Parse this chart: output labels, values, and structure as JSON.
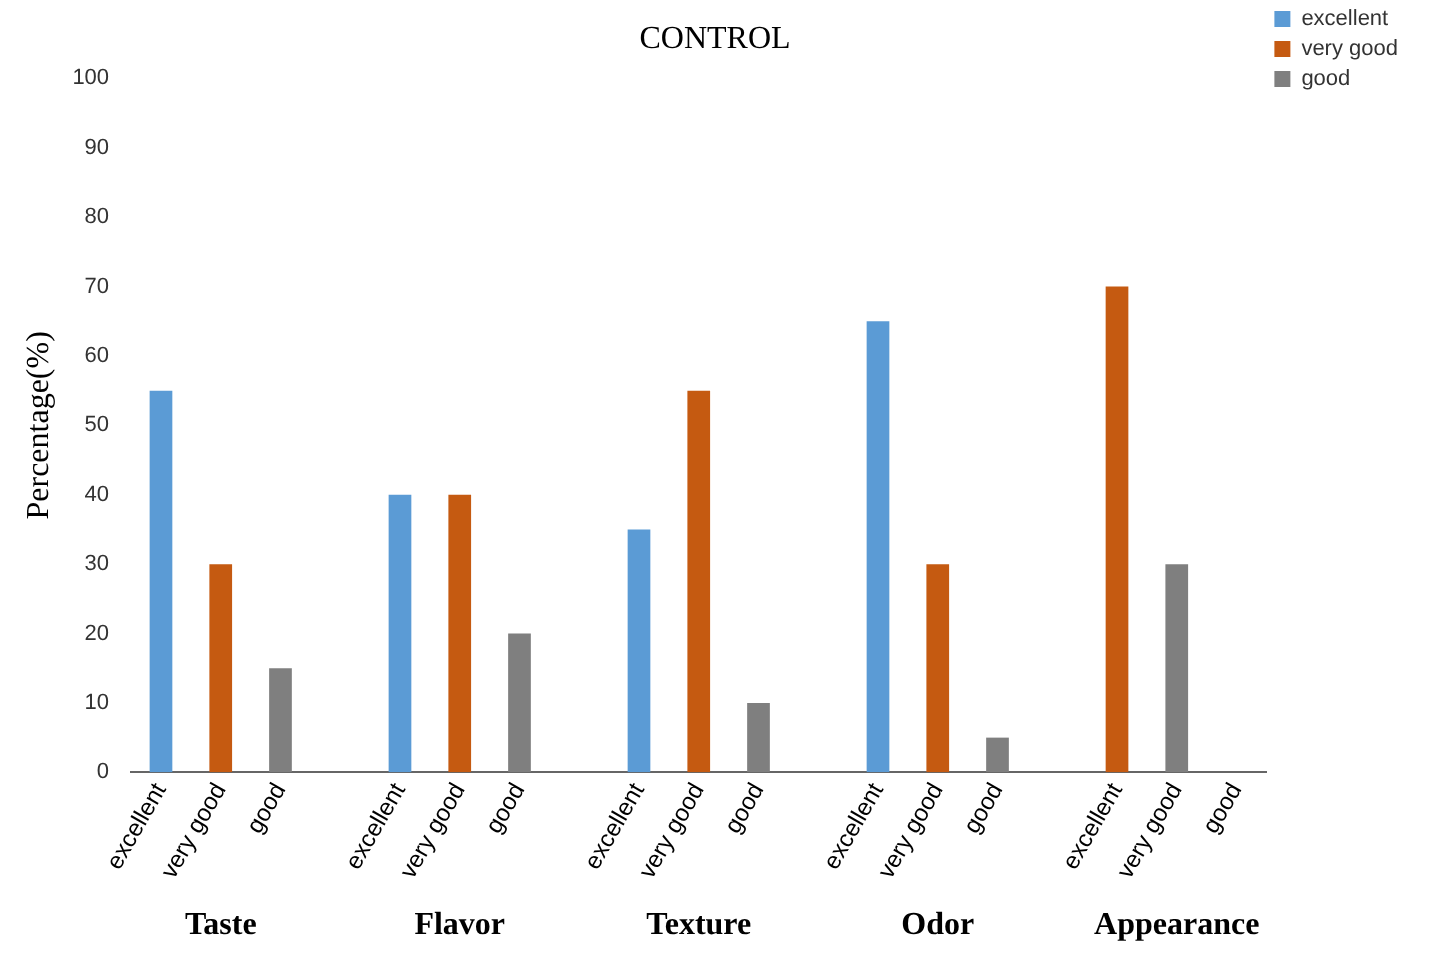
{
  "chart_data": {
    "type": "bar",
    "title": "CONTROL",
    "ylabel": "Percentage(%)",
    "categories": [
      "excellent",
      "very good",
      "good",
      null,
      "excellent",
      "very good",
      "good",
      null,
      "excellent",
      "very good",
      "good",
      null,
      "excellent",
      "very good",
      "good",
      null,
      "excellent",
      "very good",
      "good"
    ],
    "series": [
      {
        "name": "excellent",
        "color": "#5b9bd5",
        "values": [
          55,
          null,
          null,
          null,
          40,
          null,
          null,
          null,
          35,
          null,
          null,
          null,
          65,
          null,
          null,
          null,
          null,
          null,
          null
        ]
      },
      {
        "name": "very good",
        "color": "#c55a11",
        "values": [
          null,
          30,
          null,
          null,
          null,
          40,
          null,
          null,
          null,
          55,
          null,
          null,
          null,
          30,
          null,
          null,
          70,
          null,
          null
        ]
      },
      {
        "name": "good",
        "color": "#7f7f7f",
        "values": [
          null,
          null,
          15,
          null,
          null,
          null,
          20,
          null,
          null,
          null,
          10,
          null,
          null,
          null,
          5,
          null,
          null,
          30,
          null
        ]
      }
    ],
    "ylim": [
      0,
      100
    ],
    "yticks": [
      0,
      10,
      20,
      30,
      40,
      50,
      60,
      70,
      80,
      90,
      100
    ],
    "grid": false,
    "legend": "top right",
    "annotations": [
      "Taste",
      "Flavor",
      "Texture",
      "Odor",
      "Appearance"
    ]
  }
}
